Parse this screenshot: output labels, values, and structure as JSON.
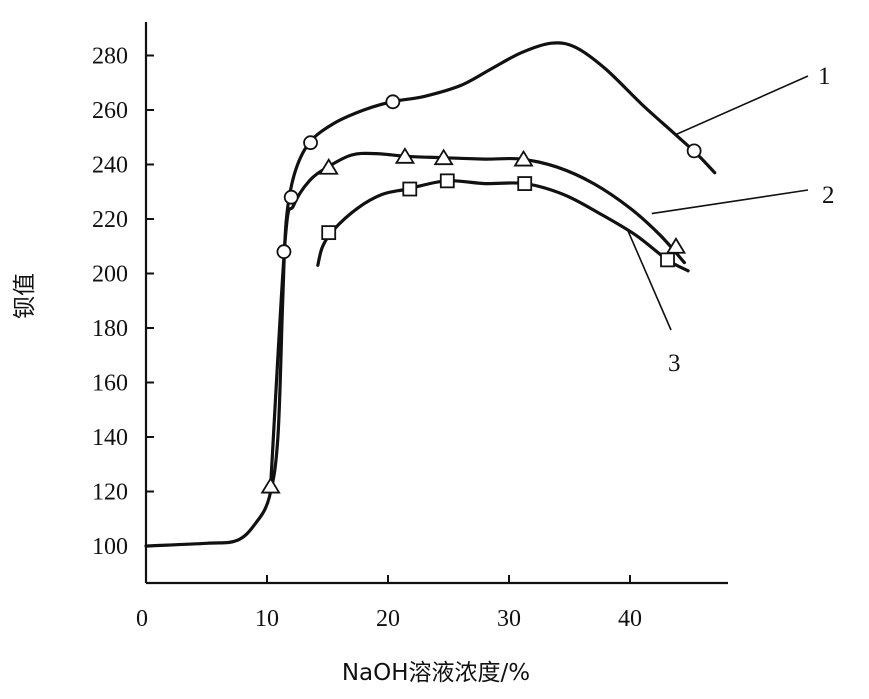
{
  "chart_data": {
    "type": "line",
    "title": "",
    "xlabel": "NaOH溶液浓度/%",
    "ylabel": "钡值",
    "xlim": [
      0,
      48
    ],
    "ylim": [
      93,
      290
    ],
    "xticks": [
      0,
      10,
      20,
      30,
      40
    ],
    "yticks": [
      100,
      120,
      140,
      160,
      180,
      200,
      220,
      240,
      260,
      280
    ],
    "grid": false,
    "series": [
      {
        "name": "1",
        "curve": [
          [
            0,
            100
          ],
          [
            5,
            101
          ],
          [
            7.5,
            102
          ],
          [
            9,
            108
          ],
          [
            10.2,
            118
          ],
          [
            10.9,
            140
          ],
          [
            11.3,
            190
          ],
          [
            11.6,
            220
          ],
          [
            12.3,
            237
          ],
          [
            13.5,
            248
          ],
          [
            15.5,
            255
          ],
          [
            18,
            260
          ],
          [
            20.3,
            263
          ],
          [
            23,
            265
          ],
          [
            26,
            269
          ],
          [
            28.5,
            275
          ],
          [
            31,
            281
          ],
          [
            33.5,
            284.5
          ],
          [
            35.5,
            283
          ],
          [
            38,
            275
          ],
          [
            41,
            262
          ],
          [
            43.5,
            252
          ],
          [
            45.5,
            244
          ],
          [
            47,
            237
          ]
        ],
        "markers": [
          [
            11.4,
            208
          ],
          [
            12,
            228
          ],
          [
            13.6,
            248
          ],
          [
            20.4,
            263
          ],
          [
            45.3,
            245
          ]
        ],
        "marker": "circle"
      },
      {
        "name": "2",
        "curve": [
          [
            10.3,
            122
          ],
          [
            11.5,
            212
          ],
          [
            12.2,
            225
          ],
          [
            13.5,
            234
          ],
          [
            15,
            239
          ],
          [
            17,
            243.5
          ],
          [
            19,
            244
          ],
          [
            21.5,
            243
          ],
          [
            24.5,
            242.5
          ],
          [
            28,
            242
          ],
          [
            31,
            242
          ],
          [
            34,
            239
          ],
          [
            37,
            233
          ],
          [
            40,
            224
          ],
          [
            42.5,
            214
          ],
          [
            44.5,
            204
          ]
        ],
        "markers": [
          [
            10.3,
            122
          ],
          [
            15.1,
            239
          ],
          [
            21.4,
            243
          ],
          [
            24.6,
            242.5
          ],
          [
            31.2,
            242
          ],
          [
            43.8,
            210
          ]
        ],
        "marker": "triangle"
      },
      {
        "name": "3",
        "curve": [
          [
            14.2,
            203
          ],
          [
            14.6,
            210
          ],
          [
            15.5,
            216
          ],
          [
            17.5,
            224
          ],
          [
            19.5,
            229
          ],
          [
            21.6,
            231
          ],
          [
            24.8,
            234
          ],
          [
            28,
            233
          ],
          [
            31.3,
            233
          ],
          [
            34.5,
            229
          ],
          [
            37.5,
            222
          ],
          [
            40.5,
            214
          ],
          [
            43.1,
            205
          ],
          [
            44.8,
            201
          ]
        ],
        "markers": [
          [
            15.1,
            215
          ],
          [
            21.8,
            231
          ],
          [
            24.9,
            234
          ],
          [
            31.3,
            233
          ],
          [
            43.1,
            205
          ]
        ],
        "marker": "square"
      }
    ]
  }
}
